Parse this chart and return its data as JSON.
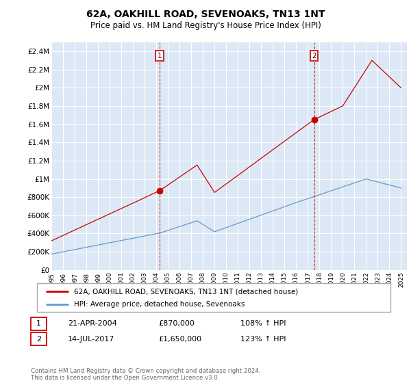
{
  "title": "62A, OAKHILL ROAD, SEVENOAKS, TN13 1NT",
  "subtitle": "Price paid vs. HM Land Registry's House Price Index (HPI)",
  "ylim": [
    0,
    2500000
  ],
  "yticks": [
    0,
    200000,
    400000,
    600000,
    800000,
    1000000,
    1200000,
    1400000,
    1600000,
    1800000,
    2000000,
    2200000,
    2400000
  ],
  "ytick_labels": [
    "£0",
    "£200K",
    "£400K",
    "£600K",
    "£800K",
    "£1M",
    "£1.2M",
    "£1.4M",
    "£1.6M",
    "£1.8M",
    "£2M",
    "£2.2M",
    "£2.4M"
  ],
  "xlim_start": 1995.0,
  "xlim_end": 2025.5,
  "xtick_years": [
    1995,
    1996,
    1997,
    1998,
    1999,
    2000,
    2001,
    2002,
    2003,
    2004,
    2005,
    2006,
    2007,
    2008,
    2009,
    2010,
    2011,
    2012,
    2013,
    2014,
    2015,
    2016,
    2017,
    2018,
    2019,
    2020,
    2021,
    2022,
    2023,
    2024,
    2025
  ],
  "transaction1_x": 2004.3,
  "transaction1_y": 870000,
  "transaction1_label": "1",
  "transaction1_date": "21-APR-2004",
  "transaction1_price": "£870,000",
  "transaction1_hpi": "108% ↑ HPI",
  "transaction2_x": 2017.54,
  "transaction2_y": 1650000,
  "transaction2_label": "2",
  "transaction2_date": "14-JUL-2017",
  "transaction2_price": "£1,650,000",
  "transaction2_hpi": "123% ↑ HPI",
  "line1_color": "#cc0000",
  "line2_color": "#6699cc",
  "background_color": "#dce8f5",
  "grid_color": "#ffffff",
  "legend1_label": "62A, OAKHILL ROAD, SEVENOAKS, TN13 1NT (detached house)",
  "legend2_label": "HPI: Average price, detached house, Sevenoaks",
  "footer": "Contains HM Land Registry data © Crown copyright and database right 2024.\nThis data is licensed under the Open Government Licence v3.0."
}
